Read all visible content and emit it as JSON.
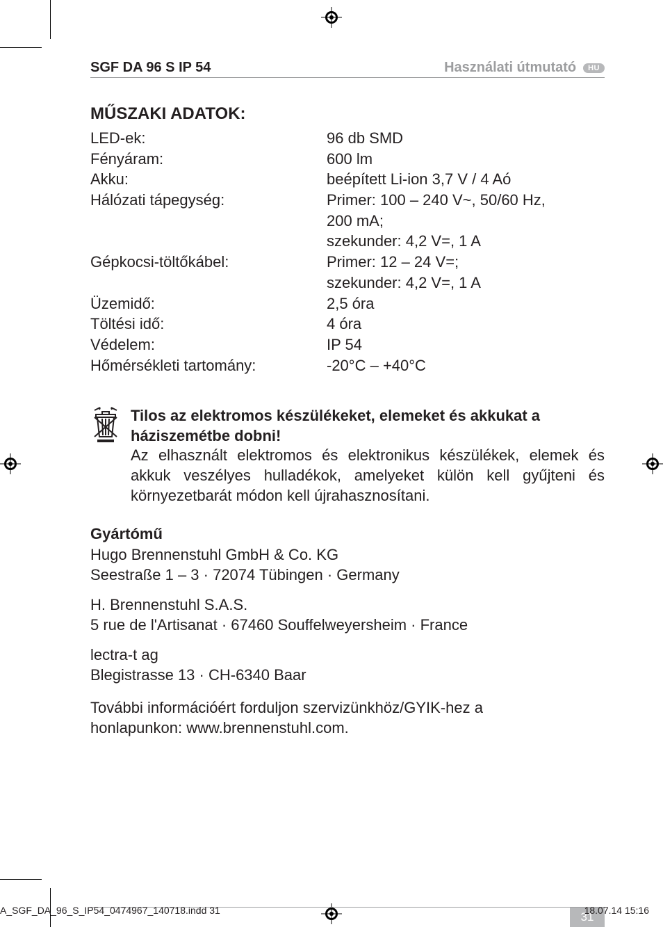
{
  "colors": {
    "text": "#231f20",
    "muted": "#9c9d9f",
    "badge_bg": "#b7b8ba",
    "badge_text": "#ffffff",
    "background": "#ffffff",
    "rule": "#9c9d9f"
  },
  "typography": {
    "base_fontsize": 22,
    "header_fontsize": 20,
    "title_fontsize": 24,
    "footer_fontsize": 14,
    "font_family": "Myriad Pro, Segoe UI, Arial, sans-serif"
  },
  "header": {
    "left": "SGF DA 96 S IP 54",
    "right": "Használati útmutató",
    "lang_badge": "HU"
  },
  "section_title": "MŰSZAKI ADATOK:",
  "specs": [
    {
      "label": "LED-ek:",
      "values": [
        "96 db SMD"
      ]
    },
    {
      "label": "Fényáram:",
      "values": [
        "600 lm"
      ]
    },
    {
      "label": "Akku:",
      "values": [
        "beépített Li-ion 3,7 V / 4 Aó"
      ]
    },
    {
      "label": "Hálózati tápegység:",
      "values": [
        "Primer: 100 – 240 V~, 50/60 Hz,",
        "200 mA;",
        "szekunder: 4,2 V=, 1 A"
      ]
    },
    {
      "label": "Gépkocsi-töltőkábel:",
      "values": [
        "Primer: 12 – 24 V=;",
        "szekunder: 4,2 V=, 1 A"
      ]
    },
    {
      "label": "Üzemidő:",
      "values": [
        "2,5 óra"
      ]
    },
    {
      "label": "Töltési idő:",
      "values": [
        "4 óra"
      ]
    },
    {
      "label": "Védelem:",
      "values": [
        "IP 54"
      ]
    },
    {
      "label": "Hőmérsékleti tartomány:",
      "values": [
        "-20°C – +40°C"
      ]
    }
  ],
  "disposal": {
    "icon": "weee-bin-icon",
    "title": "Tilos az elektromos készülékeket, elemeket és akkukat a háziszemétbe dobni!",
    "body": "Az elhasznált elektromos és elektronikus készülékek, elemek és akkuk veszélyes hulladékok, amelyeket külön kell gyűjteni és környezetbarát módon kell újrahasznosítani."
  },
  "manufacturer": {
    "heading": "Gyártómű",
    "groups": [
      [
        "Hugo Brennenstuhl GmbH & Co. KG",
        "Seestraße 1 – 3 · 72074 Tübingen · Germany"
      ],
      [
        "H. Brennenstuhl S.A.S.",
        "5 rue de l'Artisanat · 67460 Souffelweyersheim · France"
      ],
      [
        "lectra-t ag",
        "Blegistrasse 13 · CH-6340 Baar"
      ]
    ]
  },
  "more_info": {
    "line1": "További információért forduljon szervizünkhöz/GYIK-hez a",
    "line2": "honlapunkon: www.brennenstuhl.com."
  },
  "page_number": "31",
  "footer": {
    "left": "A_SGF_DA_96_S_IP54_0474967_140718.indd   31",
    "right": "18.07.14   15:16"
  }
}
